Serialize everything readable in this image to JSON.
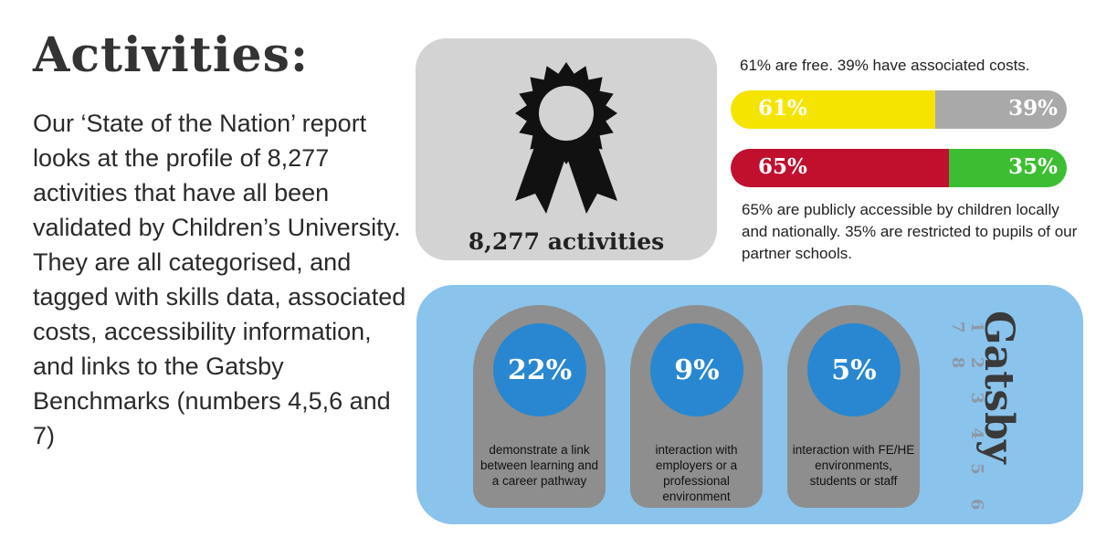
{
  "heading": "Activities:",
  "intro": "Our ‘State of the Nation’ report looks at the profile of 8,277 activities that have all been validated by Children’s University. They are all categorised, and tagged with skills data, associated costs, accessibility information, and links to the Gatsby Benchmarks (numbers 4,5,6 and 7)",
  "award": {
    "icon": "award-ribbon-icon",
    "count_label": "8,277 activities"
  },
  "costs": {
    "caption": "61% are free. 39% have associated costs.",
    "free_pct": 61,
    "free_label": "61%",
    "cost_pct": 39,
    "cost_label": "39%",
    "free_color": "#f5e400",
    "cost_color": "#a9a9a9"
  },
  "access": {
    "public_pct": 65,
    "public_label": "65%",
    "restricted_pct": 35,
    "restricted_label": "35%",
    "public_color": "#c0102e",
    "restricted_color": "#3dbe32",
    "caption": "65% are publicly accessible by children locally and nationally. 35% are restricted to pupils of our partner schools."
  },
  "gatsby": {
    "word": "Gatsby",
    "numbers": "1 2 3 4 5 6 7 8",
    "stats": [
      {
        "value": "22%",
        "desc": "demonstrate a link between learning and a career pathway"
      },
      {
        "value": "9%",
        "desc": "interaction with employers or a professional environment"
      },
      {
        "value": "5%",
        "desc": "interaction with FE/HE environments, students or staff"
      }
    ]
  }
}
